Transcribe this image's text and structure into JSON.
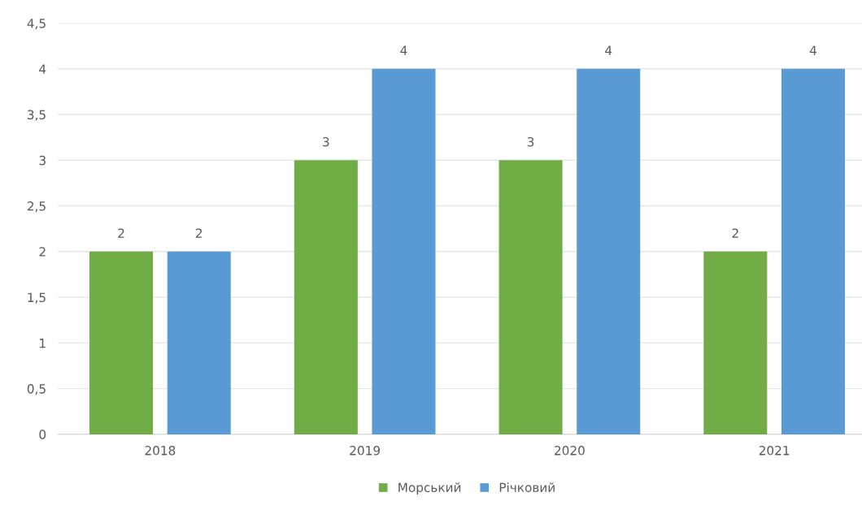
{
  "chart_data": {
    "type": "bar",
    "categories": [
      "2018",
      "2019",
      "2020",
      "2021"
    ],
    "series": [
      {
        "name": "Морський",
        "color": "#70ad47",
        "values": [
          2,
          3,
          3,
          2
        ]
      },
      {
        "name": "Річковий",
        "color": "#5b9bd5",
        "values": [
          2,
          4,
          4,
          4
        ]
      }
    ],
    "ylim": [
      0,
      4.5
    ],
    "yticks": [
      0,
      {
        "value": 0.5,
        "label": "0,5"
      },
      1,
      {
        "value": 1.5,
        "label": "1,5"
      },
      2,
      {
        "value": 2.5,
        "label": "2,5"
      },
      3,
      {
        "value": 3.5,
        "label": "3,5"
      },
      4,
      {
        "value": 4.5,
        "label": "4,5"
      }
    ],
    "grid": "y",
    "legend": "bottom",
    "data_labels": true
  }
}
